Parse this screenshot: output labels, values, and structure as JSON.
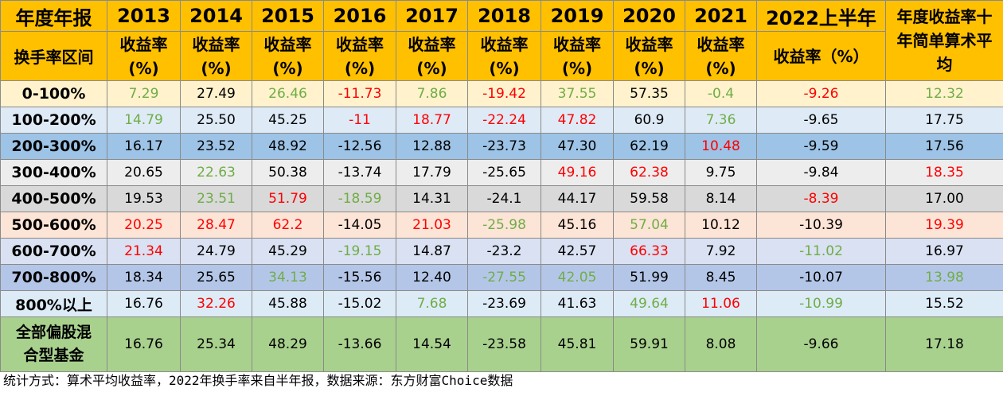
{
  "header": {
    "corner_top": "年度年报",
    "corner_bottom": "换手率区间",
    "years": [
      "2013",
      "2014",
      "2015",
      "2016",
      "2017",
      "2018",
      "2019",
      "2020",
      "2021",
      "2022上半年"
    ],
    "subheader_l1": "收益率",
    "subheader_l2": "(%)",
    "subheader_2022": "收益率（%）",
    "avg_header": "年度收益率十年简单算术平均"
  },
  "rows": [
    {
      "label": "0-100%",
      "bg": "#fff2cc",
      "values": [
        "7.29",
        "27.49",
        "26.46",
        "-11.73",
        "7.86",
        "-19.42",
        "37.55",
        "57.35",
        "-0.4",
        "-9.26",
        "12.32"
      ],
      "colors": [
        "g",
        "k",
        "g",
        "r",
        "g",
        "r",
        "g",
        "k",
        "g",
        "r",
        "g"
      ]
    },
    {
      "label": "100-200%",
      "bg": "#deebf7",
      "values": [
        "14.79",
        "25.50",
        "45.25",
        "-11",
        "18.77",
        "-22.24",
        "47.82",
        "60.9",
        "7.36",
        "-9.65",
        "17.75"
      ],
      "colors": [
        "g",
        "k",
        "k",
        "r",
        "r",
        "r",
        "r",
        "k",
        "g",
        "k",
        "k"
      ]
    },
    {
      "label": "200-300%",
      "bg": "#9dc3e6",
      "values": [
        "16.17",
        "23.52",
        "48.92",
        "-12.56",
        "12.88",
        "-23.73",
        "47.30",
        "62.19",
        "10.48",
        "-9.59",
        "17.56"
      ],
      "colors": [
        "k",
        "k",
        "k",
        "k",
        "k",
        "k",
        "k",
        "k",
        "r",
        "k",
        "k"
      ]
    },
    {
      "label": "300-400%",
      "bg": "#ededed",
      "values": [
        "20.65",
        "22.63",
        "50.38",
        "-13.74",
        "17.79",
        "-25.65",
        "49.16",
        "62.38",
        "9.75",
        "-9.84",
        "18.35"
      ],
      "colors": [
        "k",
        "g",
        "k",
        "k",
        "k",
        "k",
        "r",
        "r",
        "k",
        "k",
        "r"
      ]
    },
    {
      "label": "400-500%",
      "bg": "#d9d9d9",
      "values": [
        "19.53",
        "23.51",
        "51.79",
        "-18.59",
        "14.31",
        "-24.1",
        "44.17",
        "59.58",
        "8.14",
        "-8.39",
        "17.00"
      ],
      "colors": [
        "k",
        "g",
        "r",
        "g",
        "k",
        "k",
        "k",
        "k",
        "k",
        "r",
        "k"
      ]
    },
    {
      "label": "500-600%",
      "bg": "#fce4d6",
      "values": [
        "20.25",
        "28.47",
        "62.2",
        "-14.05",
        "21.03",
        "-25.98",
        "45.16",
        "57.04",
        "10.12",
        "-10.39",
        "19.39"
      ],
      "colors": [
        "r",
        "r",
        "r",
        "k",
        "r",
        "g",
        "k",
        "g",
        "k",
        "k",
        "r"
      ]
    },
    {
      "label": "600-700%",
      "bg": "#d9e1f2",
      "values": [
        "21.34",
        "24.79",
        "45.29",
        "-19.15",
        "14.87",
        "-23.2",
        "42.57",
        "66.33",
        "7.92",
        "-11.02",
        "16.97"
      ],
      "colors": [
        "r",
        "k",
        "k",
        "g",
        "k",
        "k",
        "k",
        "r",
        "k",
        "g",
        "k"
      ]
    },
    {
      "label": "700-800%",
      "bg": "#b4c6e7",
      "values": [
        "18.34",
        "25.65",
        "34.13",
        "-15.56",
        "12.40",
        "-27.55",
        "42.05",
        "51.99",
        "8.45",
        "-10.07",
        "13.98"
      ],
      "colors": [
        "k",
        "k",
        "g",
        "k",
        "k",
        "g",
        "g",
        "k",
        "k",
        "k",
        "g"
      ]
    },
    {
      "label": "800%以上",
      "bg": "#ddebf7",
      "values": [
        "16.76",
        "32.26",
        "45.88",
        "-15.02",
        "7.68",
        "-23.69",
        "41.63",
        "49.64",
        "11.06",
        "-10.99",
        "15.52"
      ],
      "colors": [
        "k",
        "r",
        "k",
        "k",
        "g",
        "k",
        "k",
        "g",
        "r",
        "g",
        "k"
      ]
    }
  ],
  "total": {
    "label": "全部偏股混合型基金",
    "values": [
      "16.76",
      "25.34",
      "48.29",
      "-13.66",
      "14.54",
      "-23.58",
      "45.81",
      "59.91",
      "8.08",
      "-9.66",
      "17.18"
    ]
  },
  "colors": {
    "k": "#000000",
    "g": "#70ad47",
    "r": "#ff0000",
    "header": "#ffc000",
    "total": "#a9d18e"
  },
  "footnote": "统计方式：算术平均收益率，2022年换手率来自半年报，数据来源：东方财富Choice数据"
}
